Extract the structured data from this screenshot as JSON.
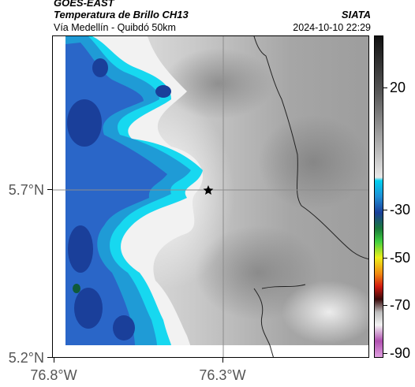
{
  "header": {
    "title": "GOES-EAST",
    "subtitle": "Temperatura de Brillo CH13",
    "location": "Vía Medellín - Quibdó 50km",
    "organization": "SIATA",
    "timestamp": "2024-10-10 22:29"
  },
  "map": {
    "type": "satellite-brightness-temperature",
    "y_axis_labels": [
      "5.7°N",
      "5.2°N"
    ],
    "x_axis_labels": [
      "76.8°W",
      "76.3°W"
    ],
    "marker": "star-icon",
    "colors": {
      "cloud_cold_deep": "#1a3f9a",
      "cloud_cold": "#2a66c8",
      "cloud_mid": "#1f9bd6",
      "cloud_edge": "#17d8f0",
      "cloud_white": "#f2f2f2",
      "ground_gray": "#9a9a9a",
      "grid_line": "#8c8c8c"
    }
  },
  "colorbar": {
    "labels": [
      "20",
      "-30",
      "-50",
      "-70",
      "-90"
    ],
    "unit_hint": "°C"
  }
}
